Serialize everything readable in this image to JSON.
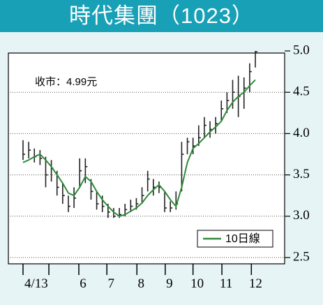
{
  "chart_data": {
    "type": "ohlc",
    "title": "時代集團（1023）",
    "annotation": "收市：4.99元",
    "bar_color": "#222222",
    "high": [
      3.92,
      3.9,
      3.82,
      3.8,
      3.72,
      3.68,
      3.55,
      3.4,
      3.25,
      3.35,
      3.7,
      3.7,
      3.45,
      3.3,
      3.25,
      3.15,
      3.1,
      3.1,
      3.15,
      3.2,
      3.22,
      3.35,
      3.55,
      3.45,
      3.42,
      3.3,
      3.18,
      3.3,
      3.9,
      3.95,
      3.95,
      4.1,
      4.2,
      4.15,
      4.2,
      4.4,
      4.5,
      4.65,
      4.7,
      4.68,
      4.85,
      5.0
    ],
    "low": [
      3.68,
      3.7,
      3.65,
      3.62,
      3.35,
      3.42,
      3.25,
      3.15,
      3.05,
      3.1,
      3.35,
      3.4,
      3.2,
      3.08,
      3.05,
      2.98,
      2.98,
      2.98,
      3.0,
      3.05,
      3.08,
      3.15,
      3.3,
      3.25,
      3.28,
      3.05,
      3.05,
      3.08,
      3.3,
      3.75,
      3.75,
      3.85,
      3.95,
      3.95,
      4.0,
      4.15,
      4.25,
      4.3,
      4.2,
      4.3,
      4.5,
      4.8
    ],
    "close": [
      3.75,
      3.8,
      3.72,
      3.7,
      3.5,
      3.58,
      3.35,
      3.25,
      3.12,
      3.22,
      3.55,
      3.6,
      3.3,
      3.15,
      3.12,
      3.05,
      3.0,
      3.02,
      3.08,
      3.12,
      3.15,
      3.25,
      3.45,
      3.35,
      3.35,
      3.1,
      3.1,
      3.15,
      3.75,
      3.9,
      3.85,
      3.95,
      4.1,
      4.05,
      4.12,
      4.3,
      4.4,
      4.5,
      4.45,
      4.55,
      4.75,
      4.99
    ],
    "series": [
      {
        "name": "10日線",
        "color": "#2e8b3a",
        "values": [
          3.65,
          3.68,
          3.72,
          3.75,
          3.68,
          3.6,
          3.5,
          3.4,
          3.28,
          3.25,
          3.35,
          3.48,
          3.42,
          3.3,
          3.2,
          3.12,
          3.05,
          3.0,
          3.02,
          3.06,
          3.1,
          3.16,
          3.25,
          3.32,
          3.38,
          3.3,
          3.2,
          3.12,
          3.35,
          3.65,
          3.82,
          3.88,
          3.95,
          4.02,
          4.08,
          4.15,
          4.28,
          4.38,
          4.45,
          4.5,
          4.58,
          4.65
        ]
      }
    ],
    "xlim": [
      0,
      41
    ],
    "xticks": [
      {
        "value": 0,
        "label": "4/13"
      },
      {
        "value": 4.56,
        "label": null
      },
      {
        "value": 9.85,
        "label": "6"
      },
      {
        "value": 14.8,
        "label": "7"
      },
      {
        "value": 20.1,
        "label": "8"
      },
      {
        "value": 25.1,
        "label": "9"
      },
      {
        "value": 30.0,
        "label": "10"
      },
      {
        "value": 35.1,
        "label": "11"
      },
      {
        "value": 40.3,
        "label": "12"
      }
    ],
    "ylim": [
      2.5,
      5.0
    ],
    "yticks": [
      {
        "value": 2.5,
        "label": "2.5"
      },
      {
        "value": 3.0,
        "label": "3.0"
      },
      {
        "value": 3.5,
        "label": "3.5"
      },
      {
        "value": 4.0,
        "label": "4.0"
      },
      {
        "value": 4.5,
        "label": "4.5"
      },
      {
        "value": 5.0,
        "label": "5.0"
      }
    ],
    "grid": true,
    "legend": "lower right"
  }
}
